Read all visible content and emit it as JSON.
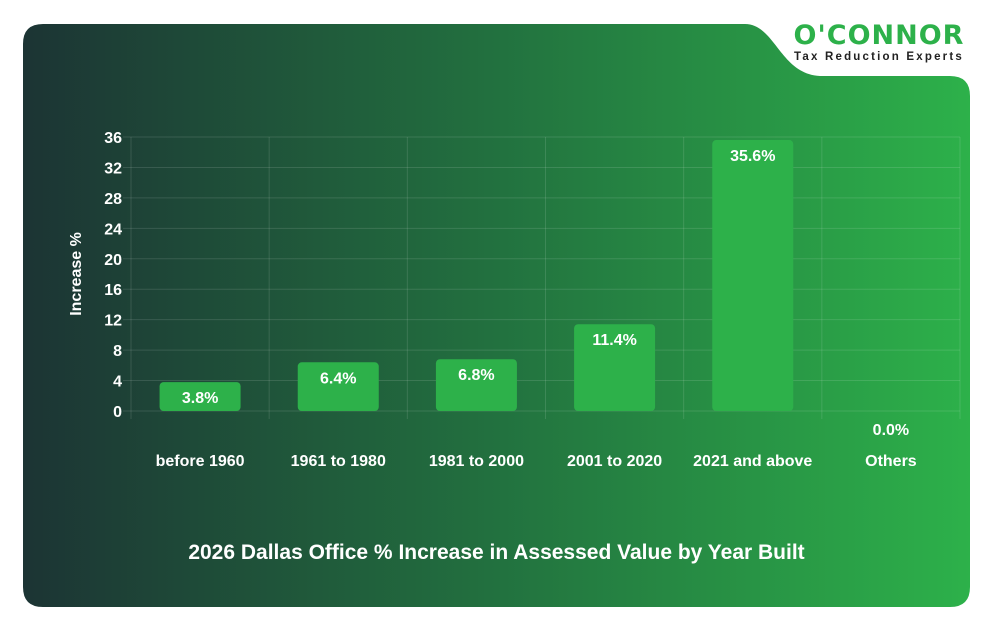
{
  "logo": {
    "name": "O'CONNOR",
    "tagline": "Tax Reduction Experts"
  },
  "colors": {
    "bar": "#2db14a",
    "bg_left": "#1c3434",
    "bg_right": "#2db14a",
    "logo": "#2db14a"
  },
  "chart_data": {
    "type": "bar",
    "title": "2026 Dallas Office % Increase in Assessed Value by Year Built",
    "xlabel": "",
    "ylabel": "Increase %",
    "categories": [
      "before 1960",
      "1961 to 1980",
      "1981 to 2000",
      "2001 to 2020",
      "2021 and above",
      "Others"
    ],
    "values": [
      3.8,
      6.4,
      6.8,
      11.4,
      35.6,
      0.0
    ],
    "data_labels": [
      "3.8%",
      "6.4%",
      "6.8%",
      "11.4%",
      "35.6%",
      "0.0%"
    ],
    "ylim": [
      0,
      36
    ],
    "yticks": [
      0,
      4,
      8,
      12,
      16,
      20,
      24,
      28,
      32,
      36
    ],
    "grid": true,
    "legend": "none"
  }
}
